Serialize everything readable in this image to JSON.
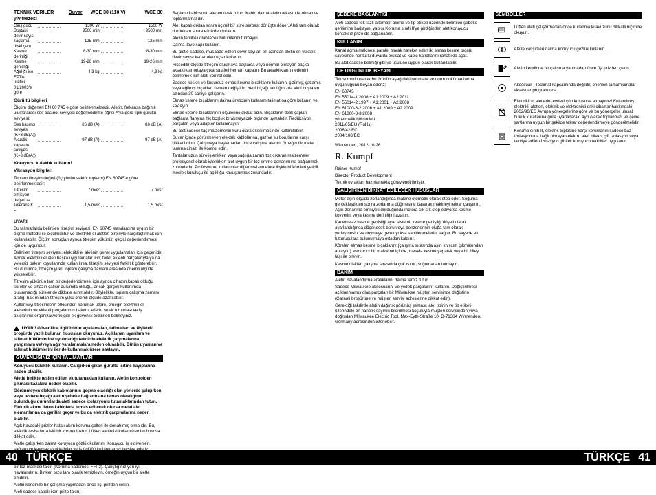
{
  "footer": {
    "left_num": "40",
    "left_txt": "TÜRKÇE",
    "right_txt": "TÜRKÇE",
    "right_num": "41"
  },
  "tech": {
    "title": "TEKNIK VERILER",
    "prod": "Duvar yiv frezesi",
    "col1": "WCE 30 (110 V)",
    "col2": "WCE 30",
    "rows": [
      {
        "l": "Giriş gücü",
        "a": "1300 W",
        "b": "1500 W"
      },
      {
        "l": "Boştaki devir sayısı",
        "a": "9500 min",
        "b": "9500 min"
      },
      {
        "l": "Taşlama diski çapı",
        "a": "125 mm",
        "b": "125 mm"
      },
      {
        "l": "Kesme derinliği",
        "a": "8-30 mm",
        "b": "8-30 mm"
      },
      {
        "l": "Kesme genişliği",
        "a": "19-26 mm",
        "b": "19-26 mm"
      },
      {
        "l": "Ağırlığı ise EPTA-üretici 01/2003'e göre",
        "a": "4,3 kg",
        "b": "4,3 kg"
      }
    ],
    "noise_title": "Gürültü bilgileri",
    "noise_txt": "Ölçüm değerleri EN 60 745 e göre belirlenmektedir.\nAletin, frekansa bağımlı uluslararası ses basıncı seviyesi değerlendirme eğrisi A'ya göre tipik gürültü seviyesi:",
    "noise_rows": [
      {
        "l": "Ses basıncı seviyesi (K=3 dB(A))",
        "a": "86 dB (A)",
        "b": "86 dB (A)"
      },
      {
        "l": "Akustik kapasite seviyesi (K=3 dB(A))",
        "a": "97 dB (A)",
        "b": "97 dB (A)"
      }
    ],
    "ear": "Koruyucu kulaklık kullanın!",
    "vib_title": "Vibrasyon bilgileri",
    "vib_txt": "Toplam titreşim değeri (üç yönün vektör toplamı) EN 60745'e göre belirlenmektedir:",
    "vib_rows": [
      {
        "l": "Titreşim emisyon değeri aₕ",
        "a": "7 m/s²",
        "b": "7 m/s²"
      },
      {
        "l": "Tolerans K =",
        "a": "1,5 m/s²",
        "b": "1,5 m/s²"
      }
    ]
  },
  "uyari": {
    "title": "UYARI",
    "p1": "Bu talimatlarda belirtilen titreşim seviyesi, EN 60745 standardına uygun bir ölçme metodu ile ölçülmüştür ve elektrikli el aletleri birbiriyle karşılaştırmak için kullanılabilir. Ölçüm sonuçları ayrıca titreşim yükünün geçici değerlendirmesi için de uygundur.",
    "p2": "Belirtilen titreşim seviyesi, elektrikli el aletinin genel uygulamaları için geçerlidir. Ancak elektrikli el aleti başka uygulamalar için, farklı eklenti parçalarıyla ya da yetersiz bakım koşullarında kullanılırsa, titreşim seviyesi farklılık gösterebilir. Bu durumda, titreşim yükü toplam çalışma zamanı arasında önemli ölçüde yükselebilir.",
    "p3": "Titreşim yükünün tam bir değerlendirmesi için ayrıca cihazın kapalı olduğu süreler ve cihazın çalışır durumda olduğu, ancak gerçek kullanımda bulunmadığı süreler de dikkate alınmalıdır. Böylelikle, toplam çalışma zamanı aralığı bakımından titreşim yükü önemli ölçüde azaltılabilir.",
    "p4": "Kullanıcıyı titreşimlerin etkisinden korumak üzere, örneğin elektrikli el aletlerinin ve eklenti parçalarının bakımı, ellerin sıcak tutulması ve iş akışlarının organizasyonu gibi ek güvenlik tedbirleri belirleyiniz."
  },
  "warnbox": "UYARI! Güvenlikle ilgili bütün açıklamaları, talimatları ve ilişikteki broşürde yazılı bulunan hususları okuyunuz. Açıklanan uyarılara ve talimat hükümlerine uyulmadığı takdirde elektrik çarpmalarına, yangınlara ve/veya ağır yaralanmalara neden olunabilir.\nBütün uyarıları ve talimat hükümlerini ileride kullanmak üzere saklayın.",
  "guvh": {
    "title": "GÜVENLİĞİNİZ İÇİN TALİMATLAR",
    "p1": "Koruyucu kulaklık kullanın. Çalışırken çıkan gürültü işitme kayıplarına neden olabilir.",
    "p2": "Aletle birlikte teslim edilen ek tutamakları kullanın. Aletin kontrolden çıkması kazalara neden olabilir.",
    "p3": "Görünmeyen elektrik kablolarının geçme olasılığı olan yerlerde çalışırken veya testere bıçağı aletin şebeke bağlantısına temas olasılığının bulunduğu durumlarda aleti sadece izolasyonlu tutamaklarından tutun. Elektrik akımı ileten kablolarla temas edilecek olursa metal alet elemanlarına da gerilim geçer ve bu da elektrik çarpmalarına neden olabilir.",
    "p4": "Açık havadaki prizler hatalı akım koruma şalteri ile donatılmış olmalıdır. Bu, elektrik tesisatınızdaki bir zorunluluktur. Lütfen aletimizi kullanırken bu hususa dikkat edin.",
    "p5": "Aletle çalışırken daima koruyucu gözlük kullanın. Koruyucu iş eldivenleri, sağlam ve kaymaz ayakkabılar ve iş önlüğü kullanmanızı tavsiye ederiz.",
    "p6": "Çalışma sırasında ortaya çıkan toz genellikle sağlığa zararlı olup, bedeninizle temasa gelmemelidir. Çalışırken toz emme donanımı kullanın ve ayrıca uygun bir toz maskesi takın (Koruma kademesi FFP2). Çalıştığınız yeri iyi havalandırın. Biriken tozu tam olarak temizleyin, örneğin uygun bir aletle emdirin.",
    "p7": "Aletin kendinde bir çalışma yapmadan önce fişi prizden çekin.",
    "p8": "Aleti sadece kapalı iken prize takın."
  },
  "mid": {
    "p1": "Bağlantı kablosunu aletten uzak tutun. Kablo daima aletin arkasında olmalı ve toplanmamalıdır.",
    "p2": "Alet kapatıldıktan sonra uç mil bir süre serbest dönüşte döner. Aleti tam olarak durduktan sonra elinizden bırakın.",
    "p3": "Aletin tehlikeli olabilecek bölümlerini tutmayın.",
    "p4": "Daima ilave sapı kullanın.",
    "p5": "Bu aletle sadece, müsaade edilen devir sayıları en azından aletin en yüksek devir sayısı kadar olan uçlar kullanın.",
    "p6": "Hissedilir ölçüde titreşim oluşmaya başlarsa veya normal olmayan başka aksaklıklar ortaya çıkarsa aleti hemen kapatın. Bu aksaklıkların nedenini belirlemek için aleti kontrol edin.",
    "p7": "Sadece keskin ve kusursuz elmas kesme bıçaklarını kullanın, çizilmiş, çatlamış veya eğilmiş bıçakları hemen değiştirin. Yeni bıçağı takılığınızda aleti boşta en azından 30 saniye çalıştırın.",
    "p8": "Elmas kesme bıçaklarını daima üreticinin kullanım talimatına göre kullanın ve saklayın.",
    "p9": "Elmas kesme bıçaklarının ölçülerine dikkat edin. Bıçakların delik çapları bağlama flanşına hiç boşluk bırakmayacak biçimde uymalıdır. Redüksiyon parçaları veya adaptör kullanmayın.",
    "p10": "Bu alet sadece taş malzemenin kuru olarak kesilmesinde kullanılabilir.",
    "p11": "Duvar içinde görünmeyen elektrik kablolarına, gaz ve su borularına karşı dikkatli olun. Çalışmaya başlamadan önce çalışma alanını örneğin bir metal tarama cihazı ile kontrol edin.",
    "p12": "Tahtalar uzun süre işlenirken veya sağlığa zararlı toz çıkaran malzemeler profesyonel olarak işlenirken alet uygun bir toz emme donanımına bağlanmak zorundadır. Profesyonel kullanıcılar diğer malzemelere ilişkin hükümleri yetkili meslek kuruluşu ile açıklığa kavuşturmak zorundadır."
  },
  "seb": {
    "title": "ŞEBEKE BAĞLANTISI",
    "p": "Aleti sadece tek fazlı alternatif akıma ve tip etiketi üzerinde belirtilen şebeke gerilimine bağlayın, yapısı Koruma sınıfı II'ye girdiğinden alet koruyucu kontaksız prize de bağlanabilir."
  },
  "kul": {
    "title": "KULLANIM",
    "p1": "Kanal açma makinesi paralel olarak hareket eden iki elmas kesme bıçağı sayesinde her türlü duvarda tesisat ve kablo kanallarını rahatlıkla açar.",
    "p2": "Bu alet sadece belirtiği gibi ve usulüne uygun olarak kullanılabilir."
  },
  "ce": {
    "title": "CE UYGUNLUK BEYANI",
    "p1": "Tek sorumlu olarak bu ürünün aşağıdaki normlara ve norm dokümanlarına uygunluğunu beyan ederiz:",
    "norms": "EN 60745\nEN 55014-1:2006 + A1:2009 + A2:2011\nEN 55014-2:1997 + A1:2001 + A2:2008\nEN 61000-3-2:2006 + A1:2009 + A2:2009\nEN 61000-3-3:2008\nyönetmelik hükümleri\n2011/65/EU (RoHs)\n2006/42/EC\n2004/108/EC",
    "loc": "Winnenden, 2012-10-26",
    "name": "Rainer Kumpf",
    "role": "Director Product Development",
    "p2": "Teknik evrakları hazırlamakla görevlendirilmiştir."
  },
  "cal": {
    "title": "ÇALIŞIRKEN DİKKAT EDİLECEK HUSUSLAR",
    "p1": "Motor aşırı ölçüde zorlandığında makine otomatik olarak stop eder. Soğuma gerçekleştikten sonra zorlanma düğmesine basarak makineyi tekrar çalıştırın. Aşırı zorlanma emniyeti durduğunda motora sık sık stop ediyorsa kesme kuvvetini veya kesme derinliğini azaltın.",
    "p2": "Kademesiz kesme genişliği ayar sistemi, kesme genişliği döşeli olarak ayarlandığında döşenecek boru veya benzerlerinin oluğa tam olarak yerleşmesini ve duymeye gerek yoksa sabitlenmelerini sağlar. Bu sayede ek tutturuculara bulunulmaya ortadan kaldırır.",
    "p3": "Körelen elmas kesme bıçaklarını (çalışma sırasında aşırı kıvılcım çıkmasından anlaşılır) aşındırıcı bir malzeme içinde, mesela kesme yaparak veya bir biley taşı ile bileyin.",
    "p4": "Kesme diskleri çalışma sırasında çok ısınır; soğumadan tutmayın."
  },
  "bak": {
    "title": "BAKIM",
    "p1": "Aletin havalandırma aralıklarını daima temiz tutun.",
    "p2": "Sadece Milwaukee aksesuarını ve yedek parçalarını kullanın. Değiştirilmesi açıklanmamış olan parçaları bir Milwaukee müşteri servisinde değiştirin (Garanti broşürüne ve müşteri servisi adreslerine dikkat edin).",
    "p3": "Gerektiği takdirde aletin dağınık görünüş şeması, alet tipinin ve tip etiketi üzerindeki on hanelik sayının bildirilmesi koşuluyla müşteri servisinden veya doğrudan Milwaukee Electric Tool, Max-Eyth-Straße 10, D-71364 Winnenden, Germany adresinden istenebilir."
  },
  "sym": {
    "title": "SEMBOLLER",
    "rows": [
      {
        "txt": "Lütfen aleti çalıştırmadan önce kullanma kılavuzunu dikkatli biçimde okuyun."
      },
      {
        "txt": "Aletle çalışırken daima koruyucu gözlük kullanın."
      },
      {
        "txt": "Aletin kendinde bir çalışma yapmadan önce fişi prizden çekin."
      },
      {
        "txt": "Aksesuar - Teslimat kapsamında değildir, önerilen tamamlamalar aksesuar programında."
      },
      {
        "txt": "Elektrikli el aletlerini evdeki çöp kutusuna atmayınız! Kullanılmış elektrikli aletleri, elektrik ve elektronikli eski cihazlar hakkındaki 2002/96/EC Avrupa yönergelerine göre ve bu yönergeler ulusal hukuk kurallarına göre uyarlanarak, ayrı olarak toplanmalı ve çevre şartlarına uygun bir şekilde tekrar değerlendirmeye gönderilmelidir."
      },
      {
        "txt": "Koruma sınıfı II, elektrik tepkisine karşı korumanın sadece baz izolasyonuna bağlı olmayan elektro alet, bilakis çift izolasyon veya takviye edilen izolasyon gibi ek koruyucu tedbirler uygulanır."
      }
    ]
  }
}
